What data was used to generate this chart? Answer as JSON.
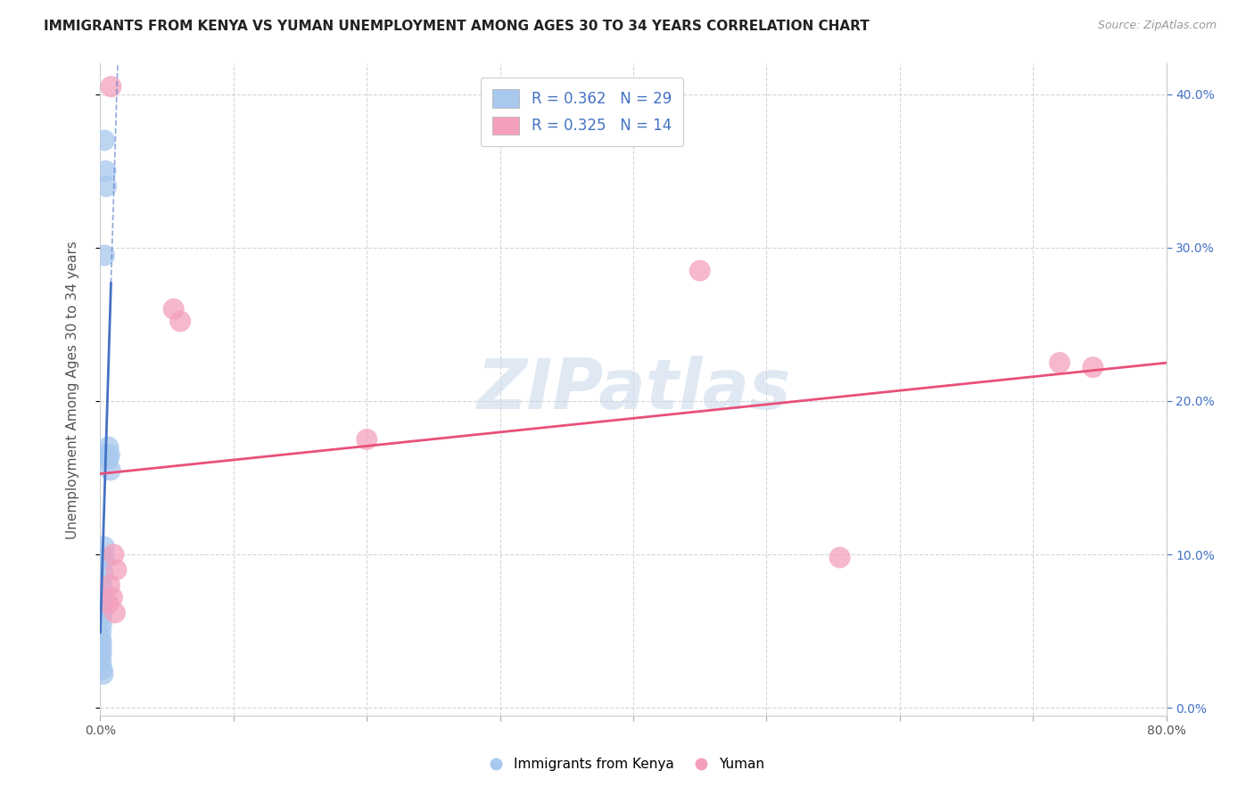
{
  "title": "IMMIGRANTS FROM KENYA VS YUMAN UNEMPLOYMENT AMONG AGES 30 TO 34 YEARS CORRELATION CHART",
  "source": "Source: ZipAtlas.com",
  "ylabel": "Unemployment Among Ages 30 to 34 years",
  "xlim": [
    0,
    0.8
  ],
  "ylim": [
    -0.005,
    0.42
  ],
  "background_color": "#ffffff",
  "watermark": "ZIPatlas",
  "legend_r_color": "#4472c4",
  "legend_r2_color": "#e8507a",
  "kenya_points": [
    [
      0.003,
      0.37
    ],
    [
      0.004,
      0.35
    ],
    [
      0.0045,
      0.34
    ],
    [
      0.003,
      0.295
    ],
    [
      0.007,
      0.165
    ],
    [
      0.0075,
      0.155
    ],
    [
      0.006,
      0.17
    ],
    [
      0.006,
      0.162
    ],
    [
      0.002,
      0.165
    ],
    [
      0.003,
      0.105
    ],
    [
      0.003,
      0.098
    ],
    [
      0.002,
      0.095
    ],
    [
      0.002,
      0.088
    ],
    [
      0.001,
      0.082
    ],
    [
      0.001,
      0.078
    ],
    [
      0.0015,
      0.075
    ],
    [
      0.0015,
      0.07
    ],
    [
      0.001,
      0.068
    ],
    [
      0.001,
      0.065
    ],
    [
      0.001,
      0.06
    ],
    [
      0.001,
      0.055
    ],
    [
      0.0005,
      0.05
    ],
    [
      0.0005,
      0.045
    ],
    [
      0.0008,
      0.042
    ],
    [
      0.0008,
      0.038
    ],
    [
      0.0006,
      0.035
    ],
    [
      0.0006,
      0.03
    ],
    [
      0.0015,
      0.025
    ],
    [
      0.002,
      0.022
    ]
  ],
  "yuman_points": [
    [
      0.008,
      0.405
    ],
    [
      0.055,
      0.26
    ],
    [
      0.06,
      0.252
    ],
    [
      0.2,
      0.175
    ],
    [
      0.45,
      0.285
    ],
    [
      0.555,
      0.098
    ],
    [
      0.72,
      0.225
    ],
    [
      0.745,
      0.222
    ],
    [
      0.01,
      0.1
    ],
    [
      0.012,
      0.09
    ],
    [
      0.007,
      0.08
    ],
    [
      0.009,
      0.072
    ],
    [
      0.006,
      0.068
    ],
    [
      0.011,
      0.062
    ]
  ],
  "kenya_line_color": "#4472c4",
  "yuman_line_color": "#e8507a",
  "kenya_scatter_color": "#a8c8ee",
  "yuman_scatter_color": "#f4a0bc",
  "right_ytick_labels": [
    "0.0%",
    "10.0%",
    "20.0%",
    "30.0%",
    "40.0%"
  ],
  "right_ytick_values": [
    0.0,
    0.1,
    0.2,
    0.3,
    0.4
  ],
  "xtick_values": [
    0.0,
    0.1,
    0.2,
    0.3,
    0.4,
    0.5,
    0.6,
    0.7,
    0.8
  ]
}
